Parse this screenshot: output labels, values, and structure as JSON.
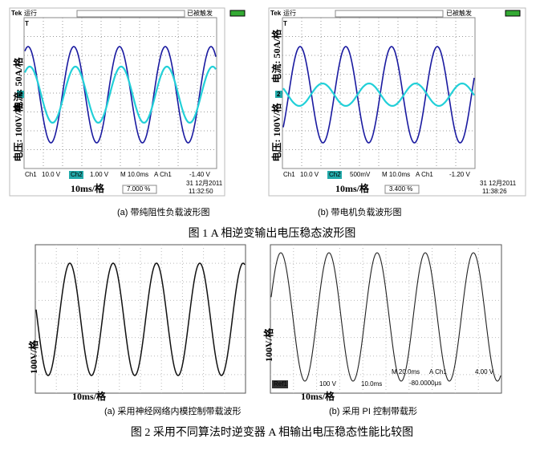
{
  "figure1": {
    "title": "图 1 A 相逆变输出电压稳态波形图",
    "panels": [
      {
        "brand": "Tek",
        "status": "运行",
        "trigger_state": "已被触发",
        "ch_marker": "2",
        "trig_marker": "T",
        "y_label_current": "电流: 50A/格",
        "y_label_voltage": "电压: 100V/格",
        "ch1": "Ch1",
        "ch1_scale": "10.0 V",
        "ch2": "Ch2",
        "ch2_scale": "1.00 V",
        "timebase": "M 10.0ms",
        "trigger_source": "A  Ch1",
        "trigger_level": "-1.40 V",
        "x_label": "10ms/格",
        "percent": "7.000 %",
        "date": "31 12月2011",
        "time": "11:32:50",
        "caption": "(a) 带纯阻性负载波形图"
      },
      {
        "brand": "Tek",
        "status": "运行",
        "trigger_state": "已被触发",
        "ch_marker": "2",
        "trig_marker": "T",
        "y_label_current": "电流: 50A/格",
        "y_label_voltage": "电压: 100V/格",
        "ch1": "Ch1",
        "ch1_scale": "10.0 V",
        "ch2": "Ch2",
        "ch2_scale": "500mV",
        "timebase": "M 10.0ms",
        "trigger_source": "A  Ch1",
        "trigger_level": "-1.20 V",
        "x_label": "10ms/格",
        "percent": "3.400 %",
        "date": "31 12月2011",
        "time": "11:38:26",
        "caption": "(b) 带电机负载波形图"
      }
    ]
  },
  "figure2": {
    "title": "图 2 采用不同算法时逆变器 A 相输出电压稳态性能比较图",
    "panels": [
      {
        "y_label": "100V/格",
        "x_label": "10ms/格",
        "caption": "(a) 采用神经网络内模控制带载波形"
      },
      {
        "y_label": "100V/格",
        "x_label": "10ms/格",
        "timebase": "M 20.0ms",
        "trigger_source": "A  Ch1",
        "trigger_level": "4.00 V",
        "ref": "Ref1",
        "ref_scale": "100 V",
        "ref_time": "10.0ms",
        "position": "-80.0000μs",
        "caption": "(b) 采用 PI 控制带载形"
      }
    ]
  }
}
